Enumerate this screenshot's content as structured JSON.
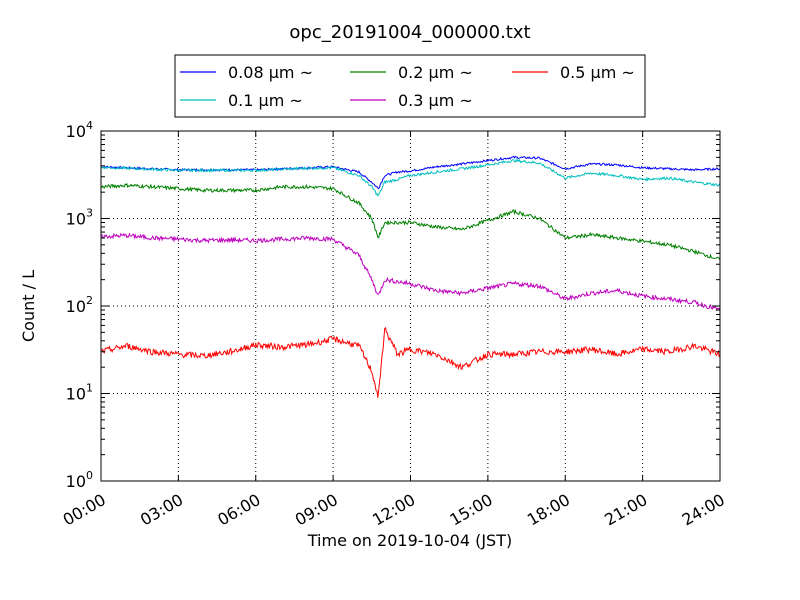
{
  "chart_data": {
    "type": "line",
    "title": "opc_20191004_000000.txt",
    "xlabel": "Time on 2019-10-04 (JST)",
    "ylabel": "Count / L",
    "y_scale": "log",
    "ylim": [
      1,
      10000
    ],
    "xlim": [
      "2019-10-04 00:00",
      "2019-10-05 00:00"
    ],
    "grid": true,
    "legend_position": "top",
    "x_ticks": [
      "00:00",
      "03:00",
      "06:00",
      "09:00",
      "12:00",
      "15:00",
      "18:00",
      "21:00",
      "24:00"
    ],
    "y_ticks": [
      {
        "base": "10",
        "exp": "0",
        "value": 1
      },
      {
        "base": "10",
        "exp": "1",
        "value": 10
      },
      {
        "base": "10",
        "exp": "2",
        "value": 100
      },
      {
        "base": "10",
        "exp": "3",
        "value": 1000
      },
      {
        "base": "10",
        "exp": "4",
        "value": 10000
      }
    ],
    "x": [
      "00:00",
      "01:00",
      "02:00",
      "03:00",
      "04:00",
      "05:00",
      "06:00",
      "07:00",
      "08:00",
      "09:00",
      "10:00",
      "10:30",
      "10:45",
      "11:00",
      "11:30",
      "12:00",
      "13:00",
      "14:00",
      "15:00",
      "16:00",
      "17:00",
      "18:00",
      "19:00",
      "20:00",
      "21:00",
      "22:00",
      "23:00",
      "24:00"
    ],
    "series": [
      {
        "name": "0.08 μm ~",
        "color": "#0000ff",
        "values": [
          3900,
          3800,
          3700,
          3600,
          3600,
          3600,
          3600,
          3700,
          3800,
          3900,
          3400,
          2600,
          2200,
          3100,
          3400,
          3500,
          3900,
          4200,
          4600,
          5000,
          4900,
          3700,
          4200,
          4100,
          3800,
          3700,
          3600,
          3700
        ]
      },
      {
        "name": "0.1 μm ~",
        "color": "#00bfbf",
        "values": [
          3850,
          3750,
          3650,
          3550,
          3550,
          3550,
          3550,
          3650,
          3750,
          3800,
          3100,
          2300,
          1800,
          2600,
          2800,
          3100,
          3400,
          3700,
          4100,
          4600,
          4300,
          2900,
          3300,
          3100,
          2800,
          2900,
          2600,
          2400
        ]
      },
      {
        "name": "0.2 μm ~",
        "color": "#008000",
        "values": [
          2300,
          2400,
          2300,
          2200,
          2100,
          2100,
          2100,
          2300,
          2300,
          2200,
          1500,
          1000,
          600,
          900,
          900,
          900,
          800,
          750,
          950,
          1200,
          1000,
          600,
          650,
          600,
          550,
          500,
          420,
          340
        ]
      },
      {
        "name": "0.3 μm ~",
        "color": "#bf00bf",
        "values": [
          620,
          640,
          600,
          580,
          560,
          570,
          560,
          580,
          600,
          580,
          380,
          200,
          130,
          200,
          190,
          180,
          150,
          140,
          160,
          180,
          170,
          120,
          140,
          150,
          130,
          120,
          110,
          90
        ]
      },
      {
        "name": "0.5 μm ~",
        "color": "#ff0000",
        "values": [
          30,
          35,
          30,
          28,
          27,
          30,
          36,
          34,
          36,
          42,
          35,
          18,
          9,
          55,
          28,
          32,
          28,
          20,
          28,
          28,
          30,
          30,
          32,
          28,
          32,
          30,
          35,
          28
        ]
      }
    ]
  }
}
